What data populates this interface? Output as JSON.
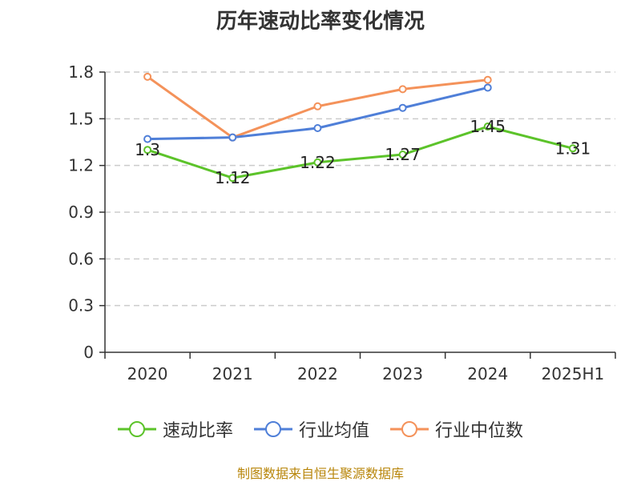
{
  "title": "历年速动比率变化情况",
  "source": "制图数据来自恒生聚源数据库",
  "colors": {
    "series1": "#5cc32a",
    "series2": "#4f7fd8",
    "series3": "#f4925a",
    "grid": "#cccccc",
    "axis": "#333333"
  },
  "chart_data": {
    "type": "line",
    "title": "历年速动比率变化情况",
    "xlabel": "",
    "ylabel": "",
    "categories": [
      "2020",
      "2021",
      "2022",
      "2023",
      "2024",
      "2025H1"
    ],
    "ylim": [
      0,
      1.8
    ],
    "yticks": [
      "0",
      "0.3",
      "0.6",
      "0.9",
      "1.2",
      "1.5",
      "1.8"
    ],
    "grid": true,
    "legend_position": "bottom",
    "series": [
      {
        "name": "速动比率",
        "values": [
          1.3,
          1.12,
          1.22,
          1.27,
          1.45,
          1.31
        ],
        "labels": [
          "1.3",
          "1.12",
          "1.22",
          "1.27",
          "1.45",
          "1.31"
        ]
      },
      {
        "name": "行业均值",
        "values": [
          1.37,
          1.38,
          1.44,
          1.57,
          1.7,
          null
        ]
      },
      {
        "name": "行业中位数",
        "values": [
          1.77,
          1.38,
          1.58,
          1.69,
          1.75,
          null
        ]
      }
    ]
  }
}
